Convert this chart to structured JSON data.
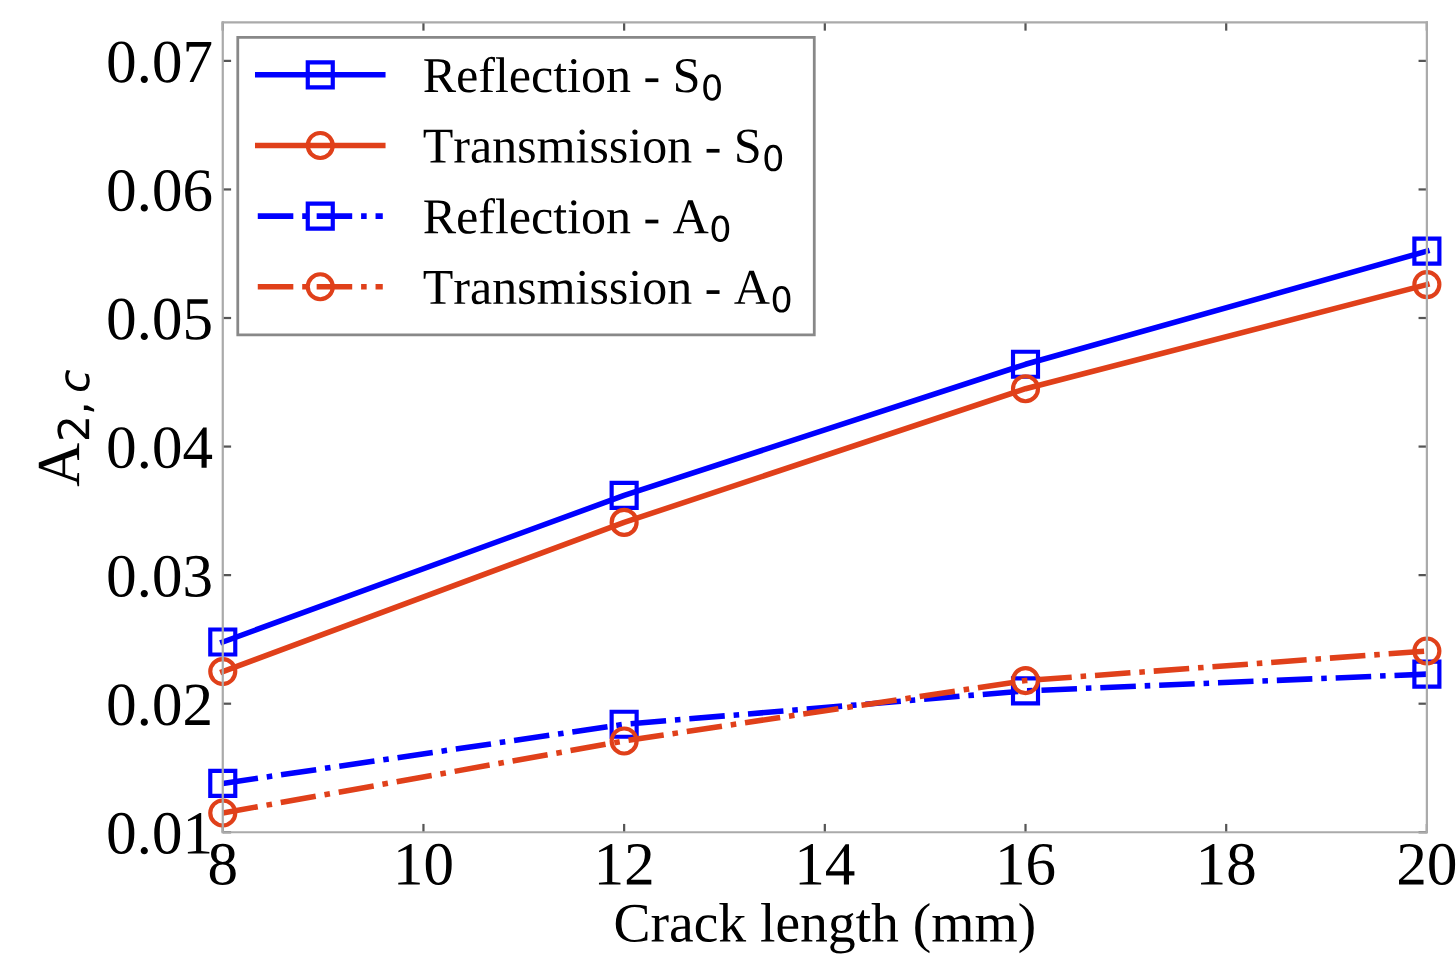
{
  "chart_data": {
    "type": "line",
    "xlabel": "Crack length (mm)",
    "ylabel": "A$_{2,c}$",
    "x": [
      8,
      12,
      16,
      20
    ],
    "series": [
      {
        "name": "Reflection - S$_{0}$",
        "color": "#0000ff",
        "values": [
          0.0248,
          0.0362,
          0.0464,
          0.0552
        ],
        "marker": "square",
        "line_style": "solid"
      },
      {
        "name": "Transmission - S$_{0}$",
        "color": "#e0401a",
        "values": [
          0.0225,
          0.0341,
          0.0445,
          0.0526
        ],
        "marker": "circle",
        "line_style": "solid"
      },
      {
        "name": "Reflection - A$_{0}$",
        "color": "#0000ff",
        "values": [
          0.0138,
          0.0184,
          0.021,
          0.0223
        ],
        "marker": "square",
        "line_style": "dashdot"
      },
      {
        "name": "Transmission - A$_{0}$",
        "color": "#e0401a",
        "values": [
          0.0115,
          0.0171,
          0.0218,
          0.0241
        ],
        "marker": "circle",
        "line_style": "dashdot"
      }
    ],
    "xlim": [
      8,
      20
    ],
    "xticks": [
      8,
      10,
      12,
      14,
      16,
      18,
      20
    ],
    "ylim": [
      0.01,
      0.073
    ],
    "yticks": [
      0.01,
      0.02,
      0.03,
      0.04,
      0.05,
      0.06,
      0.07
    ],
    "grid": false,
    "legend": "top left"
  }
}
